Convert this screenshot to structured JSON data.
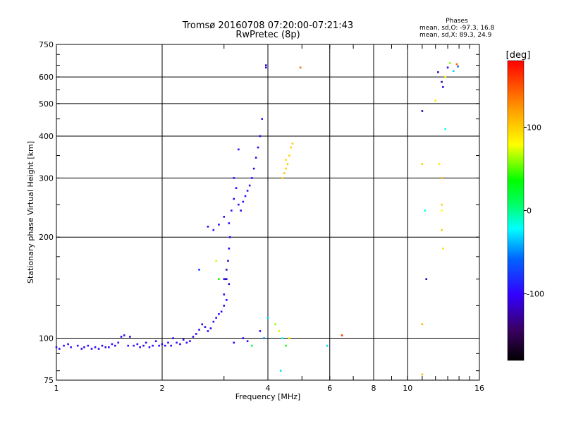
{
  "chart_data": {
    "type": "scatter",
    "title": "Tromsø 20160708 07:20:00-07:21:43",
    "subtitle": "RwPretec (8p)",
    "xlabel": "Frequency [MHz]",
    "ylabel": "Stationary phase Virtual Height [km]",
    "x_scale": "log",
    "y_scale": "log",
    "xlim": [
      1,
      16
    ],
    "ylim": [
      75,
      750
    ],
    "grid": true,
    "x_ticks": [
      1,
      2,
      4,
      6,
      8,
      10,
      16
    ],
    "x_tick_labels": [
      "1",
      "2",
      "4",
      "6",
      "8",
      "10",
      "16"
    ],
    "y_ticks": [
      75,
      100,
      200,
      300,
      400,
      500,
      600,
      750
    ],
    "y_tick_labels": [
      "75",
      "100",
      "200",
      "300",
      "400",
      "500",
      "600",
      "750"
    ],
    "phase_stats": {
      "header": "Phases",
      "line_o": "mean, sd,O:  -97.3, 16.8",
      "line_x": "mean, sd,X:  89.3, 24.9"
    },
    "colorbar": {
      "label": "[deg]",
      "range": [
        -180,
        180
      ],
      "ticks": [
        -100,
        0,
        100
      ],
      "tick_labels": [
        "-100",
        "0",
        "100"
      ]
    },
    "points": [
      [
        1.0,
        94,
        -97
      ],
      [
        1.02,
        93,
        -100
      ],
      [
        1.05,
        95,
        -95
      ],
      [
        1.08,
        96,
        -100
      ],
      [
        1.1,
        94,
        -92
      ],
      [
        1.15,
        95,
        -100
      ],
      [
        1.18,
        93,
        -105
      ],
      [
        1.2,
        94,
        -98
      ],
      [
        1.23,
        95,
        -100
      ],
      [
        1.26,
        93,
        -95
      ],
      [
        1.29,
        94,
        -100
      ],
      [
        1.32,
        93,
        -100
      ],
      [
        1.35,
        95,
        -110
      ],
      [
        1.38,
        94,
        -97
      ],
      [
        1.41,
        94,
        -100
      ],
      [
        1.44,
        96,
        -95
      ],
      [
        1.47,
        95,
        -100
      ],
      [
        1.5,
        97,
        -98
      ],
      [
        1.53,
        101,
        -100
      ],
      [
        1.56,
        102,
        -105
      ],
      [
        1.6,
        95,
        -97
      ],
      [
        1.62,
        101,
        -100
      ],
      [
        1.66,
        95,
        -92
      ],
      [
        1.7,
        96,
        -100
      ],
      [
        1.73,
        94,
        -98
      ],
      [
        1.77,
        95,
        -100
      ],
      [
        1.8,
        97,
        -100
      ],
      [
        1.84,
        94,
        -95
      ],
      [
        1.88,
        95,
        -100
      ],
      [
        1.92,
        98,
        -97
      ],
      [
        1.96,
        95,
        -100
      ],
      [
        2.0,
        96,
        -105
      ],
      [
        2.04,
        95,
        -100
      ],
      [
        2.08,
        97,
        -98
      ],
      [
        2.12,
        95,
        -100
      ],
      [
        2.15,
        100,
        -100
      ],
      [
        2.2,
        97,
        -95
      ],
      [
        2.25,
        96,
        -100
      ],
      [
        2.3,
        99,
        -102
      ],
      [
        2.35,
        97,
        -100
      ],
      [
        2.4,
        98,
        -97
      ],
      [
        2.45,
        101,
        -100
      ],
      [
        2.5,
        103,
        -95
      ],
      [
        2.55,
        106,
        -100
      ],
      [
        2.6,
        110,
        -110
      ],
      [
        2.65,
        108,
        -100
      ],
      [
        2.7,
        105,
        -98
      ],
      [
        2.75,
        107,
        -100
      ],
      [
        2.8,
        112,
        -102
      ],
      [
        2.85,
        115,
        -100
      ],
      [
        2.9,
        118,
        -95
      ],
      [
        2.95,
        120,
        -100
      ],
      [
        3.0,
        125,
        -110
      ],
      [
        3.05,
        130,
        -100
      ],
      [
        3.02,
        150,
        -130
      ],
      [
        3.05,
        160,
        -120
      ],
      [
        3.08,
        170,
        -110
      ],
      [
        3.1,
        185,
        -100
      ],
      [
        3.12,
        200,
        -105
      ],
      [
        3.1,
        220,
        -100
      ],
      [
        3.15,
        240,
        -95
      ],
      [
        3.2,
        260,
        -100
      ],
      [
        3.25,
        280,
        -100
      ],
      [
        3.2,
        300,
        -98
      ],
      [
        3.3,
        250,
        -100
      ],
      [
        3.35,
        240,
        -105
      ],
      [
        3.4,
        255,
        -100
      ],
      [
        3.45,
        265,
        -95
      ],
      [
        3.5,
        275,
        -100
      ],
      [
        3.55,
        285,
        -100
      ],
      [
        3.6,
        300,
        -100
      ],
      [
        3.65,
        320,
        -110
      ],
      [
        3.7,
        345,
        -100
      ],
      [
        3.75,
        370,
        -105
      ],
      [
        3.8,
        400,
        -100
      ],
      [
        3.85,
        450,
        -95
      ],
      [
        2.7,
        215,
        -100
      ],
      [
        2.8,
        210,
        -98
      ],
      [
        2.9,
        218,
        -100
      ],
      [
        3.0,
        230,
        -100
      ],
      [
        2.55,
        160,
        -80
      ],
      [
        2.9,
        150,
        40
      ],
      [
        2.85,
        170,
        70
      ],
      [
        3.05,
        150,
        -110
      ],
      [
        3.1,
        145,
        -120
      ],
      [
        3.0,
        135,
        -100
      ],
      [
        3.0,
        150,
        -90
      ],
      [
        3.3,
        365,
        -100
      ],
      [
        3.95,
        650,
        -110
      ],
      [
        3.95,
        640,
        -100
      ],
      [
        4.4,
        300,
        100
      ],
      [
        4.45,
        310,
        105
      ],
      [
        4.5,
        320,
        100
      ],
      [
        4.55,
        330,
        102
      ],
      [
        4.6,
        350,
        98
      ],
      [
        4.65,
        370,
        100
      ],
      [
        4.7,
        380,
        100
      ],
      [
        4.5,
        340,
        95
      ],
      [
        4.95,
        640,
        140
      ],
      [
        4.0,
        115,
        -30
      ],
      [
        4.2,
        110,
        60
      ],
      [
        4.3,
        105,
        70
      ],
      [
        4.4,
        100,
        -20
      ],
      [
        4.5,
        95,
        40
      ],
      [
        4.6,
        100,
        90
      ],
      [
        4.35,
        80,
        -30
      ],
      [
        3.8,
        105,
        -100
      ],
      [
        3.9,
        100,
        -50
      ],
      [
        3.5,
        98,
        -100
      ],
      [
        3.6,
        95,
        20
      ],
      [
        3.4,
        100,
        -100
      ],
      [
        3.2,
        97,
        -100
      ],
      [
        5.9,
        95,
        -30
      ],
      [
        6.5,
        102,
        160
      ],
      [
        11.0,
        475,
        -130
      ],
      [
        11.0,
        330,
        100
      ],
      [
        11.2,
        240,
        -20
      ],
      [
        11.3,
        150,
        -120
      ],
      [
        11.0,
        110,
        110
      ],
      [
        11.0,
        78,
        110
      ],
      [
        12.0,
        510,
        90
      ],
      [
        12.2,
        620,
        -120
      ],
      [
        12.5,
        580,
        -120
      ],
      [
        12.6,
        560,
        -110
      ],
      [
        12.8,
        600,
        80
      ],
      [
        13.0,
        640,
        -100
      ],
      [
        13.2,
        660,
        60
      ],
      [
        13.5,
        625,
        -30
      ],
      [
        13.8,
        655,
        140
      ],
      [
        13.9,
        645,
        -60
      ],
      [
        12.3,
        330,
        90
      ],
      [
        12.5,
        300,
        110
      ],
      [
        12.5,
        250,
        100
      ],
      [
        12.5,
        240,
        80
      ],
      [
        12.5,
        210,
        100
      ],
      [
        12.6,
        185,
        90
      ],
      [
        12.8,
        420,
        -20
      ]
    ]
  }
}
